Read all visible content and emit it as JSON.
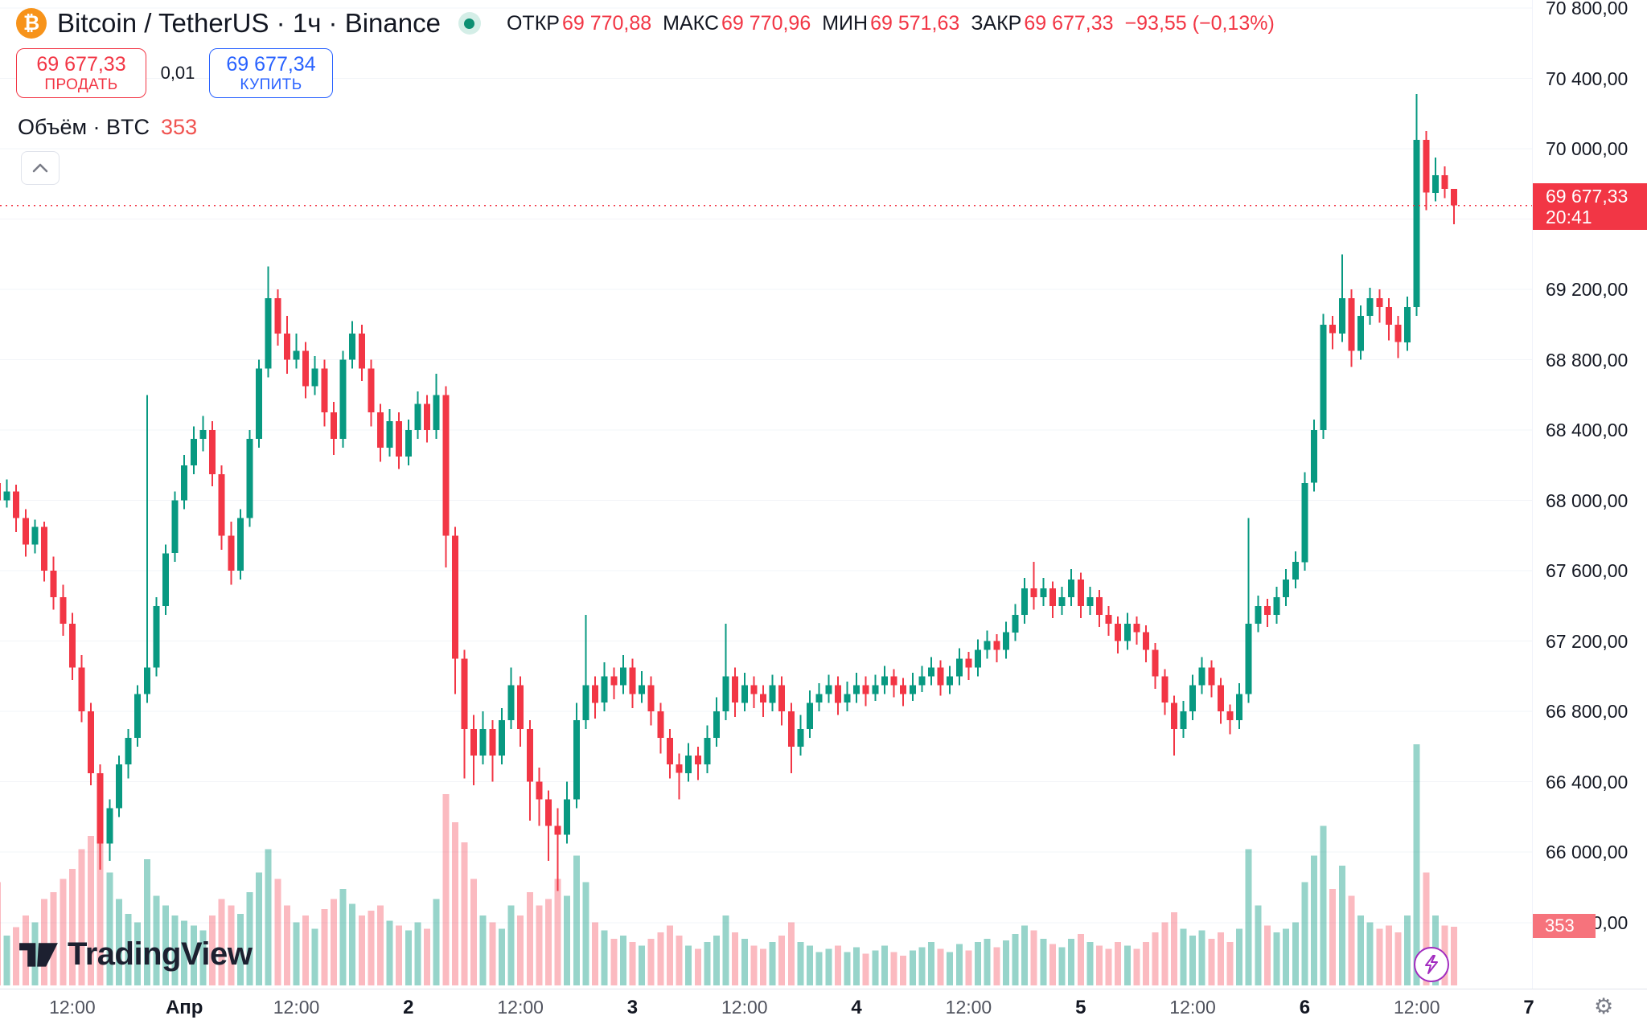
{
  "header": {
    "symbol_title": "Bitcoin / TetherUS · 1ч · Binance",
    "ohlc": {
      "open_label": "ОТКР",
      "open": "69 770,88",
      "high_label": "МАКС",
      "high": "69 770,96",
      "low_label": "МИН",
      "low": "69 571,63",
      "close_label": "ЗАКР",
      "close": "69 677,33",
      "change": "−93,55 (−0,13%)"
    },
    "sell": {
      "price": "69 677,33",
      "label": "ПРОДАТЬ"
    },
    "spread": "0,01",
    "buy": {
      "price": "69 677,34",
      "label": "КУПИТЬ"
    },
    "volume": {
      "label": "Объём · BTC",
      "value": "353"
    }
  },
  "logo": {
    "brand": "TradingView"
  },
  "price_scale": {
    "labels": [
      {
        "value": 70800,
        "text": "70 800,00"
      },
      {
        "value": 70400,
        "text": "70 400,00"
      },
      {
        "value": 70000,
        "text": "70 000,00"
      },
      {
        "value": 69600,
        "text": "69 600,00"
      },
      {
        "value": 69200,
        "text": "69 200,00"
      },
      {
        "value": 68800,
        "text": "68 800,00"
      },
      {
        "value": 68400,
        "text": "68 400,00"
      },
      {
        "value": 68000,
        "text": "68 000,00"
      },
      {
        "value": 67600,
        "text": "67 600,00"
      },
      {
        "value": 67200,
        "text": "67 200,00"
      },
      {
        "value": 66800,
        "text": "66 800,00"
      },
      {
        "value": 66400,
        "text": "66 400,00"
      },
      {
        "value": 66000,
        "text": "66 000,00"
      },
      {
        "value": 65600,
        "text": "65 600,00"
      }
    ],
    "last": {
      "text": "69 677,33",
      "time": "20:41"
    },
    "volume_label": "353"
  },
  "time_scale": {
    "ticks": [
      {
        "index": 8,
        "text": "12:00",
        "bold": false
      },
      {
        "index": 20,
        "text": "Апр",
        "bold": true
      },
      {
        "index": 32,
        "text": "12:00",
        "bold": false
      },
      {
        "index": 44,
        "text": "2",
        "bold": true
      },
      {
        "index": 56,
        "text": "12:00",
        "bold": false
      },
      {
        "index": 68,
        "text": "3",
        "bold": true
      },
      {
        "index": 80,
        "text": "12:00",
        "bold": false
      },
      {
        "index": 92,
        "text": "4",
        "bold": true
      },
      {
        "index": 104,
        "text": "12:00",
        "bold": false
      },
      {
        "index": 116,
        "text": "5",
        "bold": true
      },
      {
        "index": 128,
        "text": "12:00",
        "bold": false
      },
      {
        "index": 140,
        "text": "6",
        "bold": true
      },
      {
        "index": 152,
        "text": "12:00",
        "bold": false
      },
      {
        "index": 164,
        "text": "7",
        "bold": true
      }
    ]
  },
  "chart_data": {
    "type": "candlestick",
    "title": "Bitcoin / TetherUS 1h Binance",
    "interval": "1h",
    "current_price": 69677.33,
    "axis": {
      "min": 65600,
      "max": 70800,
      "step": 400
    },
    "colors": {
      "up": "#089981",
      "down": "#f23645",
      "vol_up": "rgba(8,153,129,0.42)",
      "vol_down": "rgba(242,54,69,0.34)",
      "price_line": "#f23645"
    },
    "candles": [
      [
        68100,
        68160,
        67250,
        68000
      ],
      [
        68000,
        68120,
        67960,
        68050
      ],
      [
        68050,
        68090,
        67820,
        67900
      ],
      [
        67900,
        67950,
        67680,
        67750
      ],
      [
        67750,
        67890,
        67700,
        67850
      ],
      [
        67850,
        67880,
        67540,
        67600
      ],
      [
        67600,
        67680,
        67380,
        67450
      ],
      [
        67450,
        67520,
        67230,
        67300
      ],
      [
        67300,
        67360,
        66980,
        67050
      ],
      [
        67050,
        67120,
        66740,
        66800
      ],
      [
        66800,
        66850,
        66380,
        66450
      ],
      [
        66450,
        66500,
        65900,
        66050
      ],
      [
        66050,
        66300,
        65950,
        66250
      ],
      [
        66250,
        66550,
        66200,
        66500
      ],
      [
        66500,
        66700,
        66420,
        66650
      ],
      [
        66650,
        66950,
        66600,
        66900
      ],
      [
        66900,
        68600,
        66850,
        67050
      ],
      [
        67050,
        67450,
        67000,
        67400
      ],
      [
        67400,
        67750,
        67350,
        67700
      ],
      [
        67700,
        68050,
        67650,
        68000
      ],
      [
        68000,
        68260,
        67950,
        68200
      ],
      [
        68200,
        68420,
        68150,
        68350
      ],
      [
        68350,
        68480,
        68280,
        68400
      ],
      [
        68400,
        68450,
        68080,
        68150
      ],
      [
        68150,
        68200,
        67720,
        67800
      ],
      [
        67800,
        67880,
        67520,
        67600
      ],
      [
        67600,
        67950,
        67550,
        67900
      ],
      [
        67900,
        68400,
        67850,
        68350
      ],
      [
        68350,
        68800,
        68300,
        68750
      ],
      [
        68750,
        69330,
        68700,
        69150
      ],
      [
        69150,
        69200,
        68880,
        68950
      ],
      [
        68950,
        69050,
        68720,
        68800
      ],
      [
        68800,
        68950,
        68750,
        68850
      ],
      [
        68850,
        68900,
        68580,
        68650
      ],
      [
        68650,
        68820,
        68600,
        68750
      ],
      [
        68750,
        68800,
        68420,
        68500
      ],
      [
        68500,
        68560,
        68260,
        68350
      ],
      [
        68350,
        68850,
        68300,
        68800
      ],
      [
        68800,
        69020,
        68750,
        68950
      ],
      [
        68950,
        69000,
        68680,
        68750
      ],
      [
        68750,
        68800,
        68420,
        68500
      ],
      [
        68500,
        68550,
        68220,
        68300
      ],
      [
        68300,
        68520,
        68250,
        68450
      ],
      [
        68450,
        68500,
        68180,
        68250
      ],
      [
        68250,
        68460,
        68200,
        68400
      ],
      [
        68400,
        68620,
        68350,
        68550
      ],
      [
        68550,
        68600,
        68330,
        68400
      ],
      [
        68400,
        68720,
        68350,
        68600
      ],
      [
        68600,
        68650,
        67620,
        67800
      ],
      [
        67800,
        67850,
        66900,
        67100
      ],
      [
        67100,
        67150,
        66420,
        66700
      ],
      [
        66700,
        66780,
        66380,
        66550
      ],
      [
        66550,
        66800,
        66500,
        66700
      ],
      [
        66700,
        66750,
        66400,
        66550
      ],
      [
        66550,
        66820,
        66500,
        66750
      ],
      [
        66750,
        67050,
        66700,
        66950
      ],
      [
        66950,
        67000,
        66600,
        66700
      ],
      [
        66700,
        66750,
        66180,
        66400
      ],
      [
        66400,
        66480,
        66150,
        66300
      ],
      [
        66300,
        66350,
        65950,
        66150
      ],
      [
        66150,
        66250,
        65780,
        66100
      ],
      [
        66100,
        66400,
        66050,
        66300
      ],
      [
        66300,
        66850,
        66250,
        66750
      ],
      [
        66750,
        67350,
        66700,
        66950
      ],
      [
        66950,
        67000,
        66760,
        66850
      ],
      [
        66850,
        67080,
        66800,
        67000
      ],
      [
        67000,
        67050,
        66870,
        66950
      ],
      [
        66950,
        67120,
        66900,
        67050
      ],
      [
        67050,
        67100,
        66820,
        66900
      ],
      [
        66900,
        67030,
        66850,
        66950
      ],
      [
        66950,
        67000,
        66720,
        66800
      ],
      [
        66800,
        66850,
        66560,
        66650
      ],
      [
        66650,
        66700,
        66420,
        66500
      ],
      [
        66500,
        66560,
        66300,
        66450
      ],
      [
        66450,
        66620,
        66400,
        66550
      ],
      [
        66550,
        66600,
        66410,
        66500
      ],
      [
        66500,
        66720,
        66450,
        66650
      ],
      [
        66650,
        66880,
        66600,
        66800
      ],
      [
        66800,
        67300,
        66750,
        67000
      ],
      [
        67000,
        67050,
        66770,
        66850
      ],
      [
        66850,
        67020,
        66800,
        66950
      ],
      [
        66950,
        67000,
        66820,
        66900
      ],
      [
        66900,
        66950,
        66770,
        66850
      ],
      [
        66850,
        67010,
        66800,
        66950
      ],
      [
        66950,
        67000,
        66720,
        66800
      ],
      [
        66800,
        66850,
        66450,
        66600
      ],
      [
        66600,
        66780,
        66550,
        66700
      ],
      [
        66700,
        66920,
        66650,
        66850
      ],
      [
        66850,
        66960,
        66800,
        66900
      ],
      [
        66900,
        67010,
        66850,
        66950
      ],
      [
        66950,
        67000,
        66780,
        66850
      ],
      [
        66850,
        66970,
        66800,
        66900
      ],
      [
        66900,
        67020,
        66850,
        66950
      ],
      [
        66950,
        67000,
        66830,
        66900
      ],
      [
        66900,
        67010,
        66860,
        66950
      ],
      [
        66950,
        67060,
        66900,
        67000
      ],
      [
        67000,
        67040,
        66880,
        66950
      ],
      [
        66950,
        66990,
        66830,
        66900
      ],
      [
        66900,
        67020,
        66860,
        66950
      ],
      [
        66950,
        67060,
        66910,
        67000
      ],
      [
        67000,
        67110,
        66950,
        67050
      ],
      [
        67050,
        67090,
        66890,
        66950
      ],
      [
        66950,
        67060,
        66900,
        67000
      ],
      [
        67000,
        67160,
        66950,
        67100
      ],
      [
        67100,
        67140,
        66980,
        67050
      ],
      [
        67050,
        67210,
        67000,
        67150
      ],
      [
        67150,
        67260,
        67100,
        67200
      ],
      [
        67200,
        67240,
        67080,
        67150
      ],
      [
        67150,
        67310,
        67100,
        67250
      ],
      [
        67250,
        67410,
        67200,
        67350
      ],
      [
        67350,
        67560,
        67300,
        67500
      ],
      [
        67500,
        67650,
        67380,
        67450
      ],
      [
        67450,
        67560,
        67400,
        67500
      ],
      [
        67500,
        67540,
        67330,
        67400
      ],
      [
        67400,
        67510,
        67350,
        67450
      ],
      [
        67450,
        67610,
        67400,
        67550
      ],
      [
        67550,
        67590,
        67330,
        67400
      ],
      [
        67400,
        67510,
        67350,
        67450
      ],
      [
        67450,
        67490,
        67280,
        67350
      ],
      [
        67350,
        67400,
        67230,
        67300
      ],
      [
        67300,
        67340,
        67130,
        67200
      ],
      [
        67200,
        67360,
        67150,
        67300
      ],
      [
        67300,
        67340,
        67180,
        67250
      ],
      [
        67250,
        67290,
        67080,
        67150
      ],
      [
        67150,
        67190,
        66930,
        67000
      ],
      [
        67000,
        67040,
        66780,
        66850
      ],
      [
        66850,
        66890,
        66550,
        66700
      ],
      [
        66700,
        66860,
        66650,
        66800
      ],
      [
        66800,
        67010,
        66750,
        66950
      ],
      [
        66950,
        67110,
        66900,
        67050
      ],
      [
        67050,
        67090,
        66880,
        66950
      ],
      [
        66950,
        66990,
        66730,
        66800
      ],
      [
        66800,
        66840,
        66670,
        66750
      ],
      [
        66750,
        66960,
        66700,
        66900
      ],
      [
        66900,
        67900,
        66850,
        67300
      ],
      [
        67300,
        67460,
        67250,
        67400
      ],
      [
        67400,
        67440,
        67280,
        67350
      ],
      [
        67350,
        67510,
        67300,
        67450
      ],
      [
        67450,
        67610,
        67400,
        67550
      ],
      [
        67550,
        67710,
        67500,
        67650
      ],
      [
        67650,
        68160,
        67600,
        68100
      ],
      [
        68100,
        68460,
        68050,
        68400
      ],
      [
        68400,
        69060,
        68350,
        69000
      ],
      [
        69000,
        69050,
        68860,
        68950
      ],
      [
        68950,
        69400,
        68900,
        69150
      ],
      [
        69150,
        69200,
        68760,
        68850
      ],
      [
        68850,
        69110,
        68800,
        69050
      ],
      [
        69050,
        69210,
        69000,
        69150
      ],
      [
        69150,
        69200,
        69010,
        69100
      ],
      [
        69100,
        69150,
        68910,
        69000
      ],
      [
        69000,
        69050,
        68810,
        68900
      ],
      [
        68900,
        69160,
        68850,
        69100
      ],
      [
        69100,
        70310,
        69050,
        70050
      ],
      [
        70050,
        70100,
        69650,
        69750
      ],
      [
        69750,
        69950,
        69700,
        69850
      ],
      [
        69850,
        69900,
        69720,
        69770.88
      ],
      [
        69770.88,
        69770.96,
        69571.63,
        69677.33
      ]
    ],
    "volumes": [
      620,
      300,
      350,
      420,
      380,
      520,
      560,
      640,
      700,
      820,
      900,
      1050,
      680,
      520,
      430,
      380,
      760,
      540,
      480,
      420,
      390,
      360,
      330,
      420,
      520,
      480,
      430,
      560,
      680,
      820,
      640,
      480,
      380,
      420,
      340,
      460,
      520,
      580,
      490,
      420,
      450,
      480,
      390,
      360,
      330,
      380,
      340,
      520,
      1150,
      980,
      860,
      640,
      420,
      380,
      340,
      480,
      420,
      560,
      480,
      520,
      640,
      540,
      780,
      620,
      380,
      330,
      280,
      300,
      260,
      240,
      280,
      320,
      360,
      300,
      240,
      220,
      260,
      300,
      420,
      320,
      280,
      240,
      220,
      260,
      300,
      380,
      260,
      240,
      200,
      220,
      240,
      200,
      230,
      190,
      210,
      240,
      200,
      180,
      210,
      230,
      260,
      220,
      200,
      250,
      210,
      260,
      280,
      230,
      270,
      310,
      360,
      330,
      280,
      250,
      230,
      280,
      310,
      260,
      240,
      220,
      260,
      240,
      220,
      260,
      320,
      380,
      440,
      340,
      300,
      330,
      280,
      320,
      260,
      340,
      820,
      480,
      360,
      320,
      340,
      380,
      620,
      780,
      960,
      580,
      720,
      540,
      420,
      380,
      340,
      360,
      320,
      420,
      1450,
      680,
      420,
      360,
      353
    ]
  }
}
